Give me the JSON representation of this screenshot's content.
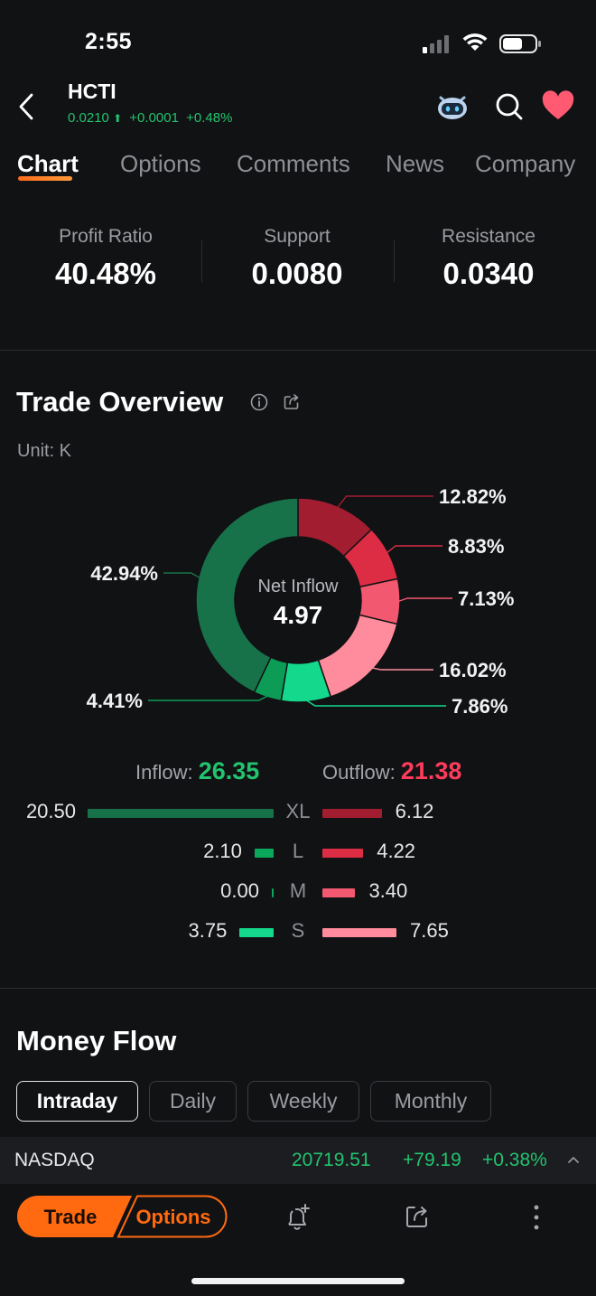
{
  "status_bar": {
    "time": "2:55"
  },
  "header": {
    "ticker": "HCTI",
    "price": "0.0210",
    "change": "+0.0001",
    "change_pct": "+0.48%"
  },
  "tabs": [
    "Chart",
    "Options",
    "Comments",
    "News",
    "Company"
  ],
  "stats": [
    {
      "label": "Profit Ratio",
      "value": "40.48%"
    },
    {
      "label": "Support",
      "value": "0.0080"
    },
    {
      "label": "Resistance",
      "value": "0.0340"
    }
  ],
  "trade_overview": {
    "title": "Trade Overview",
    "unit": "Unit: K",
    "center_label": "Net Inflow",
    "center_value": "4.97",
    "inflow_label": "Inflow:",
    "inflow_value": "26.35",
    "outflow_label": "Outflow:",
    "outflow_value": "21.38",
    "rows": [
      {
        "size": "XL",
        "inflow": "20.50",
        "outflow": "6.12"
      },
      {
        "size": "L",
        "inflow": "2.10",
        "outflow": "4.22"
      },
      {
        "size": "M",
        "inflow": "0.00",
        "outflow": "3.40"
      },
      {
        "size": "S",
        "inflow": "3.75",
        "outflow": "7.65"
      }
    ]
  },
  "chart_data": {
    "type": "pie",
    "categories": [
      "Outflow XL",
      "Outflow L",
      "Outflow M",
      "Outflow S",
      "Inflow S",
      "Inflow M",
      "Inflow L",
      "Inflow XL"
    ],
    "values": [
      12.82,
      8.83,
      7.13,
      16.02,
      7.86,
      0.0,
      4.41,
      42.94
    ],
    "labels": [
      "12.82%",
      "8.83%",
      "7.13%",
      "16.02%",
      "7.86%",
      "",
      "4.41%",
      "42.94%"
    ],
    "colors": [
      "#a31d30",
      "#dc2d45",
      "#f2586f",
      "#ff8c9c",
      "#14d98d",
      "#0ba85c",
      "#0d9c55",
      "#17724a"
    ],
    "inflow_bar_values": [
      20.5,
      2.1,
      0.0,
      3.75
    ],
    "outflow_bar_values": [
      6.12,
      4.22,
      3.4,
      7.65
    ]
  },
  "money_flow": {
    "title": "Money Flow",
    "periods": [
      "Intraday",
      "Daily",
      "Weekly",
      "Monthly"
    ],
    "active": "Intraday"
  },
  "index_bar": {
    "name": "NASDAQ",
    "value": "20719.51",
    "change": "+79.19",
    "change_pct": "+0.38%"
  },
  "bottom_bar": {
    "trade_label": "Trade",
    "options_label": "Options"
  },
  "colors": {
    "accent": "#ff6a10",
    "up": "#22c36f",
    "down": "#ff3b5c",
    "background": "#111214"
  }
}
